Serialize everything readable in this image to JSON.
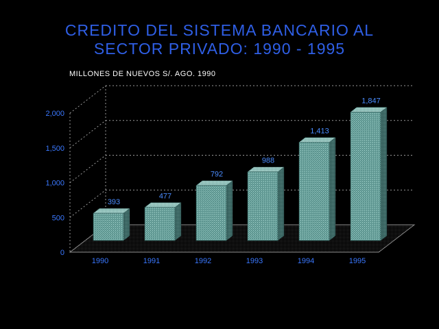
{
  "chart_data": {
    "type": "bar",
    "title_line1": "CREDITO DEL SISTEMA BANCARIO AL",
    "title_line2": "SECTOR PRIVADO: 1990 - 1995",
    "ylabel": "MILLONES DE NUEVOS S/. AGO. 1990",
    "categories": [
      "1990",
      "1991",
      "1992",
      "1993",
      "1994",
      "1995"
    ],
    "values": [
      393,
      477,
      792,
      988,
      1413,
      1847
    ],
    "value_labels": [
      "393",
      "477",
      "792",
      "988",
      "1,413",
      "1,847"
    ],
    "yticks": [
      0,
      500,
      1000,
      1500,
      2000
    ],
    "ytick_labels": [
      "0",
      "500",
      "1,000",
      "1,500",
      "2,000"
    ],
    "ylim": [
      0,
      2000
    ],
    "grid": true,
    "colors": {
      "bar_front": "#6fa6a0",
      "bar_side": "#3c6e6a",
      "bar_top": "#9fd0c8",
      "title": "#2f5fe6",
      "axis": "#bdbdbd"
    }
  }
}
